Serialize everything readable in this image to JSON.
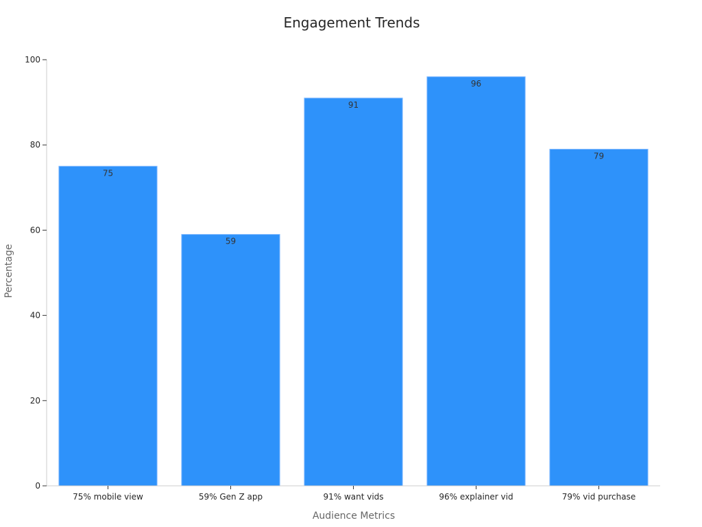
{
  "chart_data": {
    "type": "bar",
    "title": "Engagement Trends",
    "xlabel": "Audience Metrics",
    "ylabel": "Percentage",
    "categories": [
      "75% mobile view",
      "59% Gen Z app",
      "91% want vids",
      "96% explainer vid",
      "79% vid purchase"
    ],
    "values": [
      75,
      59,
      91,
      96,
      79
    ],
    "ylim": [
      0,
      100
    ],
    "yticks": [
      0,
      20,
      40,
      60,
      80,
      100
    ],
    "grid": false,
    "legend": "none",
    "bar_color": "#2e92fa"
  }
}
